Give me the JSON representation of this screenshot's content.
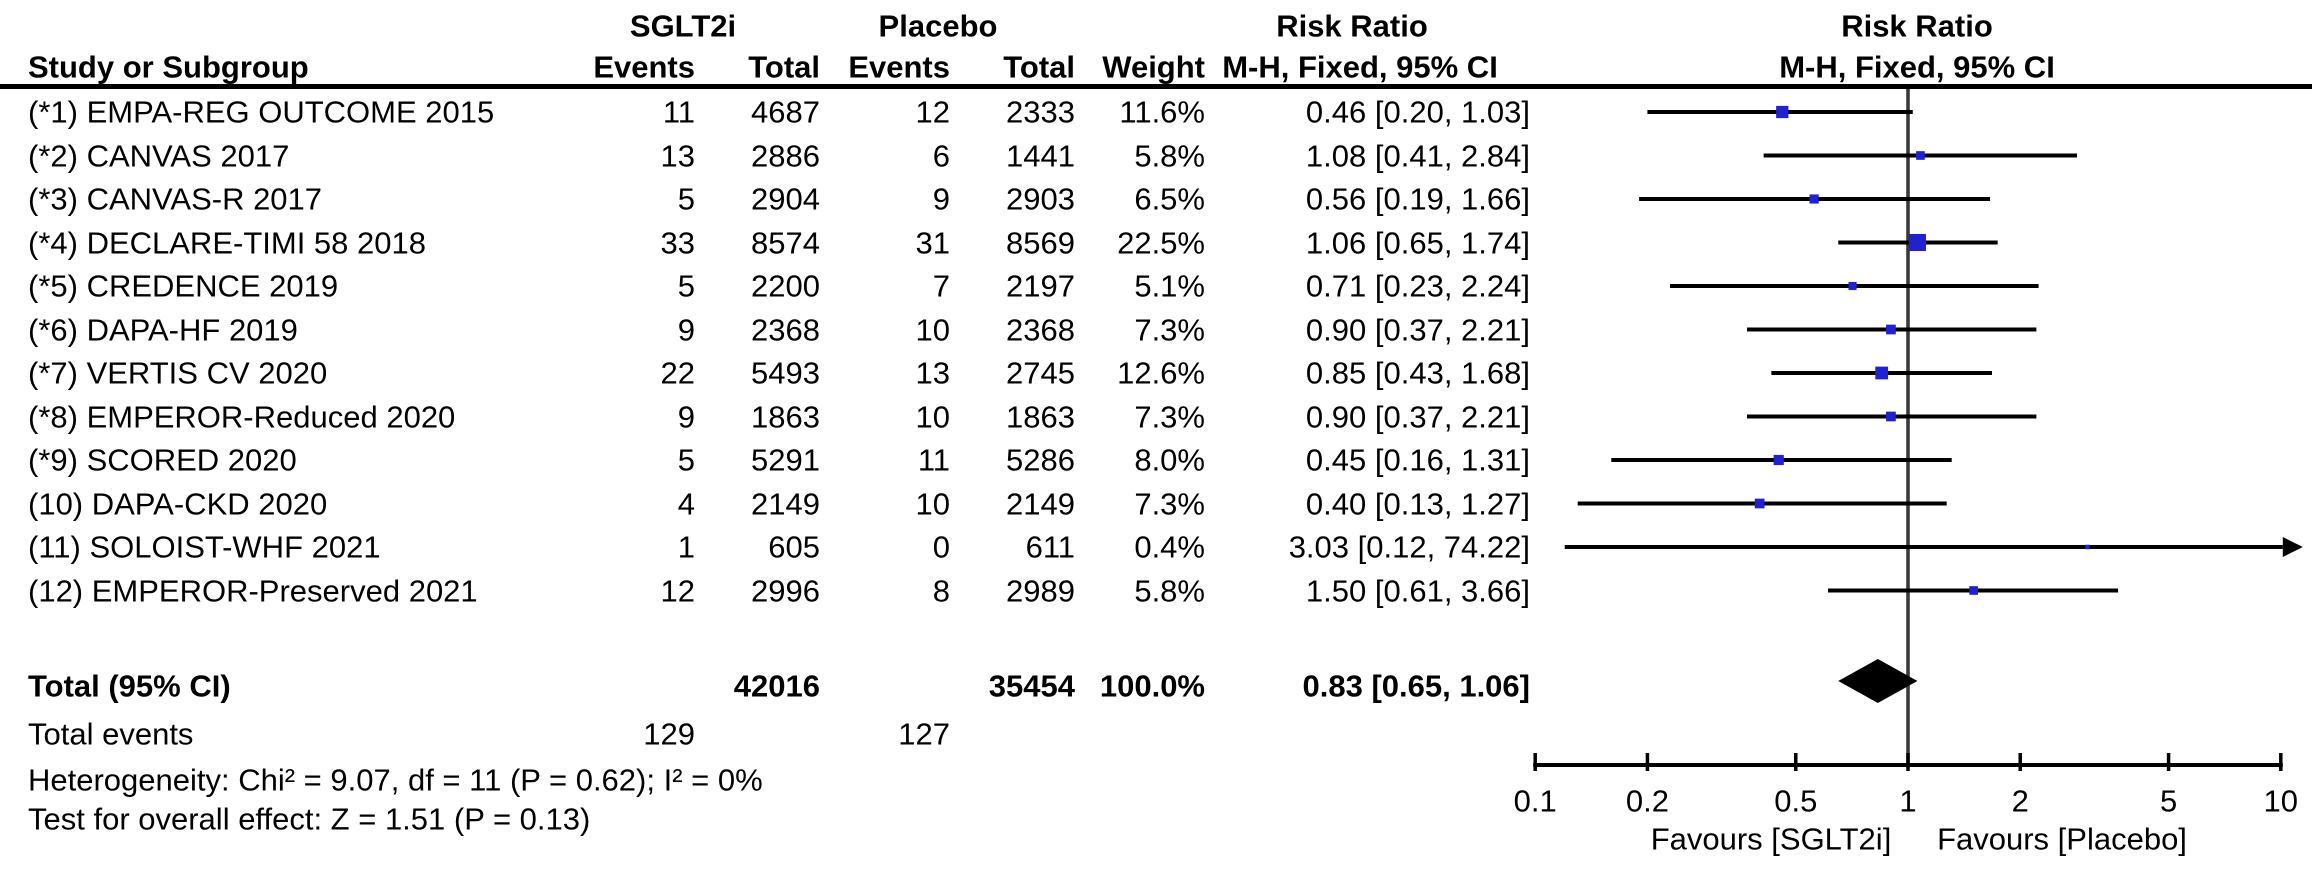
{
  "chart_data": {
    "type": "forest",
    "x_scale": "log10",
    "xlim": [
      0.1,
      10
    ],
    "axis_ticks": [
      "0.1",
      "0.2",
      "0.5",
      "1",
      "2",
      "5",
      "10"
    ],
    "favours_left": "Favours [SGLT2i]",
    "favours_right": "Favours [Placebo]",
    "marker_color": "#2121CE",
    "line_color": "#000000",
    "null_line_color": "#3a3a3a",
    "columns": {
      "study": "Study or Subgroup",
      "group1": {
        "name": "SGLT2i",
        "events": "Events",
        "total": "Total"
      },
      "group2": {
        "name": "Placebo",
        "events": "Events",
        "total": "Total"
      },
      "weight": "Weight",
      "rr_stat_header": {
        "line1": "Risk Ratio",
        "line2": "M-H, Fixed, 95% CI"
      },
      "rr_plot_header": {
        "line1": "Risk Ratio",
        "line2": "M-H, Fixed, 95% CI"
      }
    },
    "studies": [
      {
        "label": "(*1) EMPA-REG OUTCOME 2015",
        "events1": "11",
        "total1": "4687",
        "events2": "12",
        "total2": "2333",
        "weight": "11.6%",
        "weight_pct": 11.6,
        "rr": 0.46,
        "ci_low": 0.2,
        "ci_high": 1.03,
        "rr_text": "0.46 [0.20, 1.03]"
      },
      {
        "label": "(*2) CANVAS 2017",
        "events1": "13",
        "total1": "2886",
        "events2": "6",
        "total2": "1441",
        "weight": "5.8%",
        "weight_pct": 5.8,
        "rr": 1.08,
        "ci_low": 0.41,
        "ci_high": 2.84,
        "rr_text": "1.08 [0.41, 2.84]"
      },
      {
        "label": "(*3) CANVAS-R 2017",
        "events1": "5",
        "total1": "2904",
        "events2": "9",
        "total2": "2903",
        "weight": "6.5%",
        "weight_pct": 6.5,
        "rr": 0.56,
        "ci_low": 0.19,
        "ci_high": 1.66,
        "rr_text": "0.56 [0.19, 1.66]"
      },
      {
        "label": "(*4) DECLARE-TIMI 58 2018",
        "events1": "33",
        "total1": "8574",
        "events2": "31",
        "total2": "8569",
        "weight": "22.5%",
        "weight_pct": 22.5,
        "rr": 1.06,
        "ci_low": 0.65,
        "ci_high": 1.74,
        "rr_text": "1.06 [0.65, 1.74]"
      },
      {
        "label": "(*5) CREDENCE 2019",
        "events1": "5",
        "total1": "2200",
        "events2": "7",
        "total2": "2197",
        "weight": "5.1%",
        "weight_pct": 5.1,
        "rr": 0.71,
        "ci_low": 0.23,
        "ci_high": 2.24,
        "rr_text": "0.71 [0.23, 2.24]"
      },
      {
        "label": "(*6) DAPA-HF 2019",
        "events1": "9",
        "total1": "2368",
        "events2": "10",
        "total2": "2368",
        "weight": "7.3%",
        "weight_pct": 7.3,
        "rr": 0.9,
        "ci_low": 0.37,
        "ci_high": 2.21,
        "rr_text": "0.90 [0.37, 2.21]"
      },
      {
        "label": "(*7) VERTIS CV 2020",
        "events1": "22",
        "total1": "5493",
        "events2": "13",
        "total2": "2745",
        "weight": "12.6%",
        "weight_pct": 12.6,
        "rr": 0.85,
        "ci_low": 0.43,
        "ci_high": 1.68,
        "rr_text": "0.85 [0.43, 1.68]"
      },
      {
        "label": "(*8) EMPEROR-Reduced 2020",
        "events1": "9",
        "total1": "1863",
        "events2": "10",
        "total2": "1863",
        "weight": "7.3%",
        "weight_pct": 7.3,
        "rr": 0.9,
        "ci_low": 0.37,
        "ci_high": 2.21,
        "rr_text": "0.90 [0.37, 2.21]"
      },
      {
        "label": "(*9) SCORED 2020",
        "events1": "5",
        "total1": "5291",
        "events2": "11",
        "total2": "5286",
        "weight": "8.0%",
        "weight_pct": 8.0,
        "rr": 0.45,
        "ci_low": 0.16,
        "ci_high": 1.31,
        "rr_text": "0.45 [0.16, 1.31]"
      },
      {
        "label": "(10) DAPA-CKD 2020",
        "events1": "4",
        "total1": "2149",
        "events2": "10",
        "total2": "2149",
        "weight": "7.3%",
        "weight_pct": 7.3,
        "rr": 0.4,
        "ci_low": 0.13,
        "ci_high": 1.27,
        "rr_text": "0.40 [0.13, 1.27]"
      },
      {
        "label": "(11) SOLOIST-WHF 2021",
        "events1": "1",
        "total1": "605",
        "events2": "0",
        "total2": "611",
        "weight": "0.4%",
        "weight_pct": 0.4,
        "rr": 3.03,
        "ci_low": 0.12,
        "ci_high": 74.22,
        "rr_text": "3.03 [0.12, 74.22]"
      },
      {
        "label": "(12) EMPEROR-Preserved 2021",
        "events1": "12",
        "total1": "2996",
        "events2": "8",
        "total2": "2989",
        "weight": "5.8%",
        "weight_pct": 5.8,
        "rr": 1.5,
        "ci_low": 0.61,
        "ci_high": 3.66,
        "rr_text": "1.50 [0.61, 3.66]"
      }
    ],
    "total": {
      "label": "Total (95% CI)",
      "total1": "42016",
      "total2": "35454",
      "weight": "100.0%",
      "rr": 0.83,
      "ci_low": 0.65,
      "ci_high": 1.06,
      "rr_text": "0.83 [0.65, 1.06]"
    },
    "total_events": {
      "label": "Total events",
      "events1": "129",
      "events2": "127"
    },
    "heterogeneity": "Heterogeneity: Chi² = 9.07, df = 11 (P = 0.62); I² = 0%",
    "overall_effect": "Test for overall effect: Z = 1.51 (P = 0.13)"
  }
}
